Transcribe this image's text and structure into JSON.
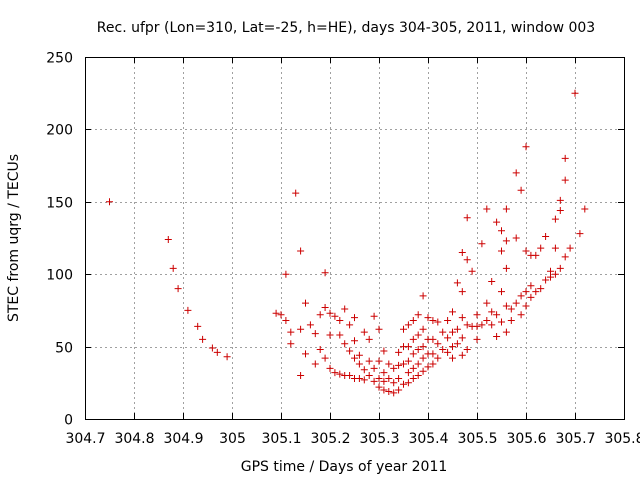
{
  "chart_data": {
    "type": "scatter",
    "title": "Rec. ufpr (Lon=310, Lat=-25, h=HE), days 304-305, 2011, window 003",
    "xlabel": "GPS time / Days of year 2011",
    "ylabel": "STEC from uqrg / TECUs",
    "xlim": [
      304.7,
      305.8
    ],
    "ylim": [
      0,
      250
    ],
    "xticks": [
      "304.7",
      "304.8",
      "304.9",
      "305",
      "305.1",
      "305.2",
      "305.3",
      "305.4",
      "305.5",
      "305.6",
      "305.7",
      "305.8"
    ],
    "yticks": [
      "0",
      "50",
      "100",
      "150",
      "200",
      "250"
    ],
    "grid": true,
    "marker": "+",
    "color": "#cc0000",
    "series": [
      {
        "name": "STEC",
        "points": [
          [
            304.75,
            150
          ],
          [
            304.87,
            124
          ],
          [
            304.88,
            104
          ],
          [
            304.89,
            90
          ],
          [
            304.91,
            75
          ],
          [
            304.93,
            64
          ],
          [
            304.94,
            55
          ],
          [
            304.96,
            49
          ],
          [
            304.97,
            46
          ],
          [
            304.99,
            43
          ],
          [
            305.09,
            73
          ],
          [
            305.1,
            72
          ],
          [
            305.11,
            68
          ],
          [
            305.11,
            100
          ],
          [
            305.12,
            60
          ],
          [
            305.12,
            52
          ],
          [
            305.13,
            156
          ],
          [
            305.14,
            116
          ],
          [
            305.14,
            62
          ],
          [
            305.14,
            30
          ],
          [
            305.15,
            80
          ],
          [
            305.15,
            45
          ],
          [
            305.16,
            65
          ],
          [
            305.17,
            59
          ],
          [
            305.17,
            38
          ],
          [
            305.18,
            72
          ],
          [
            305.18,
            48
          ],
          [
            305.19,
            77
          ],
          [
            305.19,
            42
          ],
          [
            305.19,
            101
          ],
          [
            305.2,
            73
          ],
          [
            305.2,
            58
          ],
          [
            305.2,
            35
          ],
          [
            305.21,
            71
          ],
          [
            305.21,
            32
          ],
          [
            305.22,
            68
          ],
          [
            305.22,
            58
          ],
          [
            305.22,
            31
          ],
          [
            305.23,
            76
          ],
          [
            305.23,
            52
          ],
          [
            305.23,
            30
          ],
          [
            305.24,
            65
          ],
          [
            305.24,
            47
          ],
          [
            305.24,
            30
          ],
          [
            305.25,
            70
          ],
          [
            305.25,
            54
          ],
          [
            305.25,
            42
          ],
          [
            305.25,
            28
          ],
          [
            305.26,
            44
          ],
          [
            305.26,
            38
          ],
          [
            305.26,
            28
          ],
          [
            305.27,
            60
          ],
          [
            305.27,
            34
          ],
          [
            305.27,
            27
          ],
          [
            305.28,
            55
          ],
          [
            305.28,
            40
          ],
          [
            305.28,
            30
          ],
          [
            305.29,
            71
          ],
          [
            305.29,
            35
          ],
          [
            305.29,
            26
          ],
          [
            305.3,
            62
          ],
          [
            305.3,
            40
          ],
          [
            305.3,
            28
          ],
          [
            305.3,
            22
          ],
          [
            305.31,
            47
          ],
          [
            305.31,
            32
          ],
          [
            305.31,
            26
          ],
          [
            305.31,
            20
          ],
          [
            305.32,
            38
          ],
          [
            305.32,
            28
          ],
          [
            305.32,
            19
          ],
          [
            305.33,
            35
          ],
          [
            305.33,
            25
          ],
          [
            305.33,
            18
          ],
          [
            305.34,
            46
          ],
          [
            305.34,
            37
          ],
          [
            305.34,
            28
          ],
          [
            305.34,
            20
          ],
          [
            305.35,
            62
          ],
          [
            305.35,
            50
          ],
          [
            305.35,
            38
          ],
          [
            305.35,
            24
          ],
          [
            305.36,
            65
          ],
          [
            305.36,
            50
          ],
          [
            305.36,
            40
          ],
          [
            305.36,
            32
          ],
          [
            305.36,
            25
          ],
          [
            305.37,
            68
          ],
          [
            305.37,
            55
          ],
          [
            305.37,
            45
          ],
          [
            305.37,
            35
          ],
          [
            305.37,
            28
          ],
          [
            305.38,
            72
          ],
          [
            305.38,
            58
          ],
          [
            305.38,
            48
          ],
          [
            305.38,
            38
          ],
          [
            305.38,
            30
          ],
          [
            305.39,
            85
          ],
          [
            305.39,
            62
          ],
          [
            305.39,
            50
          ],
          [
            305.39,
            42
          ],
          [
            305.39,
            33
          ],
          [
            305.4,
            70
          ],
          [
            305.4,
            55
          ],
          [
            305.4,
            45
          ],
          [
            305.4,
            36
          ],
          [
            305.41,
            68
          ],
          [
            305.41,
            55
          ],
          [
            305.41,
            45
          ],
          [
            305.41,
            38
          ],
          [
            305.42,
            67
          ],
          [
            305.42,
            52
          ],
          [
            305.42,
            42
          ],
          [
            305.43,
            60
          ],
          [
            305.43,
            48
          ],
          [
            305.44,
            68
          ],
          [
            305.44,
            56
          ],
          [
            305.44,
            46
          ],
          [
            305.45,
            74
          ],
          [
            305.45,
            60
          ],
          [
            305.45,
            50
          ],
          [
            305.45,
            42
          ],
          [
            305.46,
            94
          ],
          [
            305.46,
            62
          ],
          [
            305.46,
            52
          ],
          [
            305.47,
            115
          ],
          [
            305.47,
            88
          ],
          [
            305.47,
            70
          ],
          [
            305.47,
            56
          ],
          [
            305.47,
            44
          ],
          [
            305.48,
            139
          ],
          [
            305.48,
            110
          ],
          [
            305.48,
            65
          ],
          [
            305.48,
            48
          ],
          [
            305.49,
            102
          ],
          [
            305.49,
            64
          ],
          [
            305.5,
            72
          ],
          [
            305.5,
            64
          ],
          [
            305.5,
            55
          ],
          [
            305.51,
            121
          ],
          [
            305.51,
            65
          ],
          [
            305.52,
            145
          ],
          [
            305.52,
            80
          ],
          [
            305.52,
            68
          ],
          [
            305.53,
            95
          ],
          [
            305.53,
            74
          ],
          [
            305.53,
            65
          ],
          [
            305.54,
            136
          ],
          [
            305.54,
            72
          ],
          [
            305.54,
            57
          ],
          [
            305.55,
            130
          ],
          [
            305.55,
            116
          ],
          [
            305.55,
            88
          ],
          [
            305.55,
            67
          ],
          [
            305.56,
            145
          ],
          [
            305.56,
            123
          ],
          [
            305.56,
            104
          ],
          [
            305.56,
            78
          ],
          [
            305.56,
            60
          ],
          [
            305.57,
            76
          ],
          [
            305.57,
            68
          ],
          [
            305.58,
            170
          ],
          [
            305.58,
            125
          ],
          [
            305.58,
            80
          ],
          [
            305.59,
            158
          ],
          [
            305.59,
            85
          ],
          [
            305.59,
            72
          ],
          [
            305.6,
            188
          ],
          [
            305.6,
            116
          ],
          [
            305.6,
            88
          ],
          [
            305.6,
            78
          ],
          [
            305.61,
            113
          ],
          [
            305.61,
            92
          ],
          [
            305.61,
            84
          ],
          [
            305.62,
            113
          ],
          [
            305.62,
            88
          ],
          [
            305.63,
            90
          ],
          [
            305.63,
            118
          ],
          [
            305.64,
            96
          ],
          [
            305.64,
            126
          ],
          [
            305.65,
            102
          ],
          [
            305.65,
            98
          ],
          [
            305.66,
            138
          ],
          [
            305.66,
            118
          ],
          [
            305.66,
            100
          ],
          [
            305.67,
            151
          ],
          [
            305.67,
            144
          ],
          [
            305.67,
            104
          ],
          [
            305.68,
            180
          ],
          [
            305.68,
            165
          ],
          [
            305.68,
            112
          ],
          [
            305.69,
            118
          ],
          [
            305.7,
            225
          ],
          [
            305.71,
            128
          ],
          [
            305.72,
            145
          ]
        ]
      }
    ]
  }
}
